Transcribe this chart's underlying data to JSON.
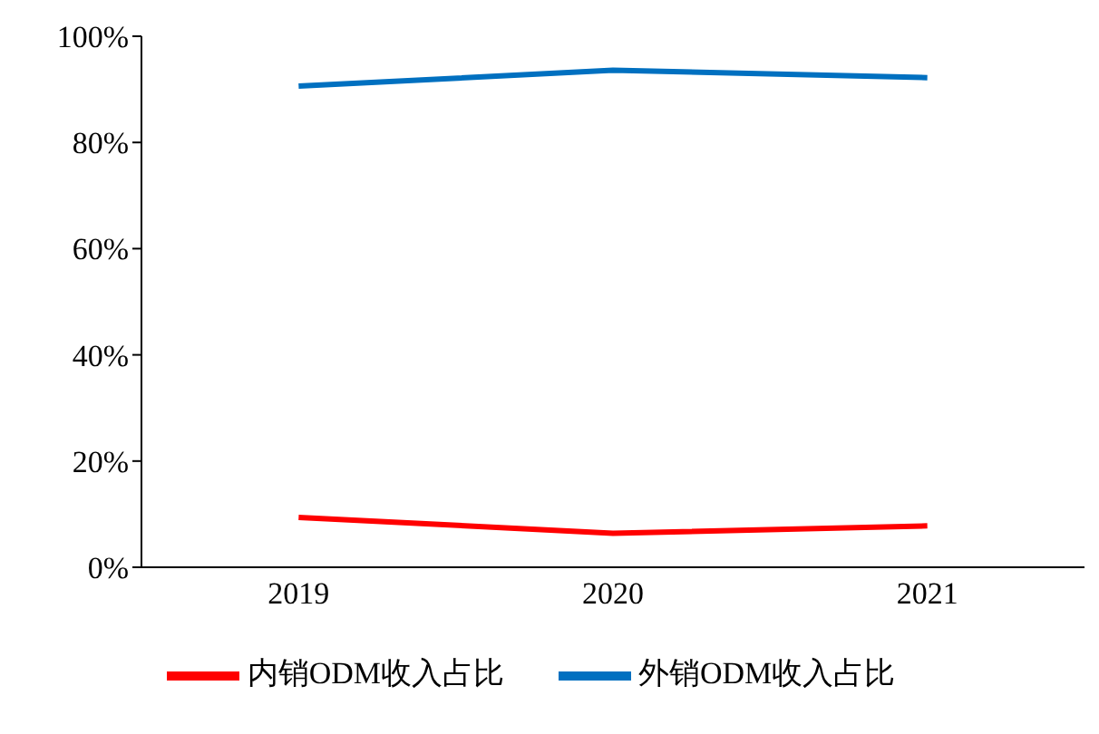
{
  "chart_data": {
    "type": "line",
    "categories": [
      "2019",
      "2020",
      "2021"
    ],
    "series": [
      {
        "name": "外销ODM收入占比",
        "color": "#0070c0",
        "values": [
          90.6,
          93.6,
          92.2
        ]
      },
      {
        "name": "内销ODM收入占比",
        "color": "#ff0000",
        "values": [
          9.4,
          6.4,
          7.8
        ]
      }
    ],
    "ylim": [
      0,
      100
    ],
    "yticks": [
      {
        "value": 0,
        "label": "0%"
      },
      {
        "value": 20,
        "label": "20%"
      },
      {
        "value": 40,
        "label": "40%"
      },
      {
        "value": 60,
        "label": "60%"
      },
      {
        "value": 80,
        "label": "80%"
      },
      {
        "value": 100,
        "label": "100%"
      }
    ],
    "grid": false,
    "legend": "bottom",
    "marker": "none",
    "line_style": "solid"
  }
}
